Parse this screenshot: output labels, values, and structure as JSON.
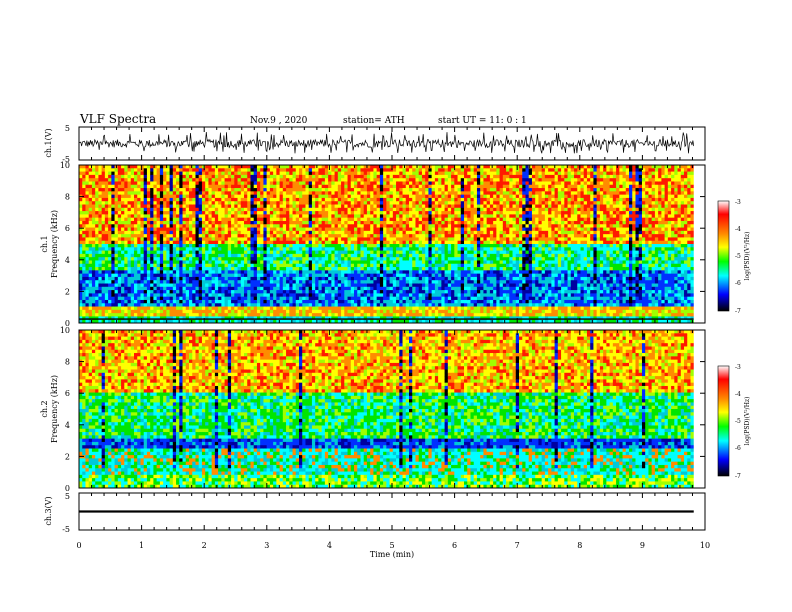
{
  "header": {
    "title": "VLF Spectra",
    "date": "Nov.9  , 2020",
    "station": "station= ATH",
    "start": "start  UT =   11: 0  : 1"
  },
  "chart_data": [
    {
      "type": "line",
      "ylabel": "ch.1(V)",
      "ylim": [
        -5,
        5
      ],
      "y_ticks": [
        "5",
        "-5"
      ],
      "x_range_min": [
        0,
        9.82
      ],
      "description_of_signal": "noisy waveform centred near 0 V, spikes to about +3.5 and -3 V",
      "series": [
        {
          "values_range": [
            -3,
            3.5
          ]
        }
      ]
    },
    {
      "type": "heatmap",
      "ylabel": "ch.1",
      "ylabel2": "Frequency  (kHz)",
      "ylim": [
        0,
        10
      ],
      "y_ticks": [
        "0",
        "2",
        "4",
        "6",
        "8",
        "10"
      ],
      "x_range_min": [
        0,
        9.82
      ],
      "colorbar": {
        "label": "log(PSD)(V²/Hz)",
        "range": [
          -7,
          -3
        ],
        "ticks": [
          "-3",
          "-4",
          "-5",
          "-6",
          "-7"
        ]
      },
      "frequency_bands": [
        {
          "from_khz": 0,
          "to_khz": 0.4,
          "level": "green-cyan with black line"
        },
        {
          "from_khz": 0.4,
          "to_khz": 1.0,
          "level": "yellow-orange"
        },
        {
          "from_khz": 1.0,
          "to_khz": 3.3,
          "level": "blue-cyan"
        },
        {
          "from_khz": 3.3,
          "to_khz": 5.0,
          "level": "green-cyan"
        },
        {
          "from_khz": 5.0,
          "to_khz": 10,
          "level": "yellow-orange-red"
        }
      ]
    },
    {
      "type": "heatmap",
      "ylabel": "ch.2",
      "ylabel2": "Frequency  (kHz)",
      "ylim": [
        0,
        10
      ],
      "y_ticks": [
        "0",
        "2",
        "4",
        "6",
        "8",
        "10"
      ],
      "x_range_min": [
        0,
        9.82
      ],
      "colorbar": {
        "label": "log(PSD)(V²/Hz)",
        "range": [
          -7,
          -3
        ],
        "ticks": [
          "-3",
          "-4",
          "-5",
          "-6",
          "-7"
        ]
      },
      "frequency_bands": [
        {
          "from_khz": 0,
          "to_khz": 0.8,
          "level": "green-yellow"
        },
        {
          "from_khz": 0.8,
          "to_khz": 2.5,
          "level": "cyan with orange streaks"
        },
        {
          "from_khz": 2.5,
          "to_khz": 3.2,
          "level": "blue"
        },
        {
          "from_khz": 3.2,
          "to_khz": 6.0,
          "level": "green-cyan"
        },
        {
          "from_khz": 6.0,
          "to_khz": 10,
          "level": "yellow-orange-red"
        }
      ]
    },
    {
      "type": "line",
      "ylabel": "ch.3(V)",
      "ylim": [
        -5,
        5
      ],
      "y_ticks": [
        "5",
        "-5"
      ],
      "xlabel": "Time  (min)",
      "xlim": [
        0,
        10
      ],
      "x_ticks": [
        "0",
        "1",
        "2",
        "3",
        "4",
        "5",
        "6",
        "7",
        "8",
        "9",
        "10"
      ],
      "x_range_min": [
        0,
        9.82
      ],
      "series": [
        {
          "values_range": [
            -0.3,
            0.3
          ]
        }
      ]
    }
  ],
  "colors": {
    "colormap": [
      "#ffffff",
      "#ff0000",
      "#ff8c00",
      "#ffff00",
      "#00ff00",
      "#00ffff",
      "#0000ff",
      "#000000"
    ]
  }
}
